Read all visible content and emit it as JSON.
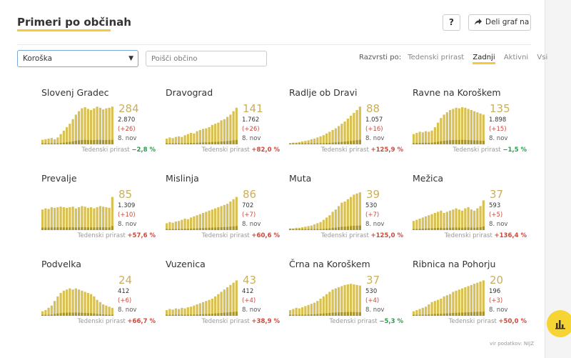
{
  "header": {
    "title": "Primeri po občinah",
    "help_label": "?",
    "share_label": "Deli graf na"
  },
  "filters": {
    "region_selected": "Koroška",
    "search_placeholder": "Poišči občino",
    "sort_label": "Razvrsti po:",
    "sort_options": [
      "Tedenski prirast",
      "Zadnji",
      "Aktivni",
      "Vsi"
    ],
    "sort_active": "Zadnji"
  },
  "weekly_label": "Tedenski prirast",
  "municipalities": [
    {
      "name": "Slovenj Gradec",
      "active": "284",
      "total": "2.870",
      "delta": "(+26)",
      "date": "8. nov",
      "weekly": "−2,8 %",
      "trend": "down",
      "series": [
        8,
        9,
        10,
        11,
        9,
        12,
        18,
        24,
        30,
        36,
        44,
        52,
        58,
        63,
        65,
        62,
        60,
        63,
        66,
        64,
        61,
        63,
        64,
        66
      ]
    },
    {
      "name": "Dravograd",
      "active": "141",
      "total": "1.762",
      "delta": "(+26)",
      "date": "8. nov",
      "weekly": "+82,0 %",
      "trend": "up",
      "series": [
        10,
        12,
        11,
        13,
        14,
        13,
        16,
        18,
        20,
        19,
        23,
        25,
        27,
        28,
        30,
        34,
        36,
        38,
        42,
        44,
        48,
        52,
        58,
        64
      ]
    },
    {
      "name": "Radlje ob Dravi",
      "active": "88",
      "total": "1.057",
      "delta": "(+16)",
      "date": "8. nov",
      "weekly": "+125,9 %",
      "trend": "up",
      "series": [
        2,
        3,
        3,
        4,
        5,
        6,
        7,
        9,
        10,
        12,
        14,
        16,
        19,
        22,
        25,
        28,
        32,
        36,
        40,
        45,
        50,
        55,
        60,
        66
      ]
    },
    {
      "name": "Ravne na Koroškem",
      "active": "135",
      "total": "1.898",
      "delta": "(+15)",
      "date": "8. nov",
      "weekly": "−1,5 %",
      "trend": "down",
      "series": [
        18,
        20,
        22,
        21,
        23,
        22,
        24,
        30,
        38,
        46,
        52,
        56,
        60,
        62,
        64,
        63,
        65,
        64,
        62,
        60,
        58,
        56,
        54,
        52
      ]
    },
    {
      "name": "Prevalje",
      "active": "85",
      "total": "1.309",
      "delta": "(+10)",
      "date": "8. nov",
      "weekly": "+57,6 %",
      "trend": "up",
      "series": [
        36,
        38,
        37,
        40,
        39,
        40,
        41,
        40,
        39,
        40,
        41,
        38,
        40,
        42,
        41,
        39,
        40,
        38,
        40,
        42,
        41,
        40,
        39,
        58
      ]
    },
    {
      "name": "Mislinja",
      "active": "86",
      "total": "702",
      "delta": "(+7)",
      "date": "8. nov",
      "weekly": "+60,6 %",
      "trend": "up",
      "series": [
        12,
        14,
        13,
        15,
        16,
        18,
        20,
        19,
        22,
        24,
        26,
        28,
        30,
        32,
        34,
        36,
        38,
        40,
        42,
        44,
        46,
        50,
        54,
        58
      ]
    },
    {
      "name": "Muta",
      "active": "39",
      "total": "530",
      "delta": "(+7)",
      "date": "8. nov",
      "weekly": "+125,0 %",
      "trend": "up",
      "series": [
        3,
        3,
        4,
        4,
        5,
        6,
        7,
        8,
        10,
        12,
        14,
        18,
        22,
        26,
        32,
        36,
        42,
        48,
        50,
        54,
        58,
        62,
        64,
        66
      ]
    },
    {
      "name": "Mežica",
      "active": "37",
      "total": "593",
      "delta": "(+5)",
      "date": "8. nov",
      "weekly": "+136,4 %",
      "trend": "up",
      "series": [
        16,
        18,
        20,
        22,
        24,
        26,
        28,
        30,
        32,
        34,
        30,
        32,
        34,
        36,
        38,
        36,
        34,
        38,
        40,
        36,
        34,
        38,
        42,
        52
      ]
    },
    {
      "name": "Podvelka",
      "active": "24",
      "total": "412",
      "delta": "(+6)",
      "date": "8. nov",
      "weekly": "+66,7 %",
      "trend": "up",
      "series": [
        8,
        10,
        14,
        18,
        26,
        34,
        40,
        44,
        46,
        48,
        46,
        48,
        46,
        44,
        42,
        40,
        38,
        34,
        28,
        24,
        20,
        18,
        16,
        14
      ]
    },
    {
      "name": "Vuzenica",
      "active": "43",
      "total": "412",
      "delta": "(+4)",
      "date": "8. nov",
      "weekly": "+38,9 %",
      "trend": "up",
      "series": [
        10,
        12,
        11,
        13,
        12,
        14,
        13,
        15,
        16,
        18,
        20,
        22,
        24,
        26,
        28,
        30,
        34,
        38,
        42,
        46,
        50,
        54,
        58,
        62
      ]
    },
    {
      "name": "Črna na Koroškem",
      "active": "37",
      "total": "530",
      "delta": "(+4)",
      "date": "8. nov",
      "weekly": "−5,3 %",
      "trend": "down",
      "series": [
        10,
        12,
        14,
        13,
        15,
        17,
        19,
        21,
        23,
        26,
        30,
        34,
        38,
        42,
        46,
        48,
        50,
        52,
        54,
        55,
        56,
        55,
        54,
        53
      ]
    },
    {
      "name": "Ribnica na Pohorju",
      "active": "20",
      "total": "196",
      "delta": "(+3)",
      "date": "8. nov",
      "weekly": "+50,0 %",
      "trend": "up",
      "series": [
        8,
        10,
        12,
        14,
        16,
        20,
        24,
        26,
        28,
        30,
        34,
        36,
        38,
        42,
        44,
        46,
        48,
        50,
        52,
        54,
        56,
        58,
        60,
        62
      ]
    }
  ],
  "source": "vir podatkov: NIJZ",
  "colors": {
    "accent": "#f5c842",
    "bar": "#d8c052",
    "bar_dark": "#a8942a",
    "up": "#c94a3d",
    "down": "#2c9a4a"
  }
}
